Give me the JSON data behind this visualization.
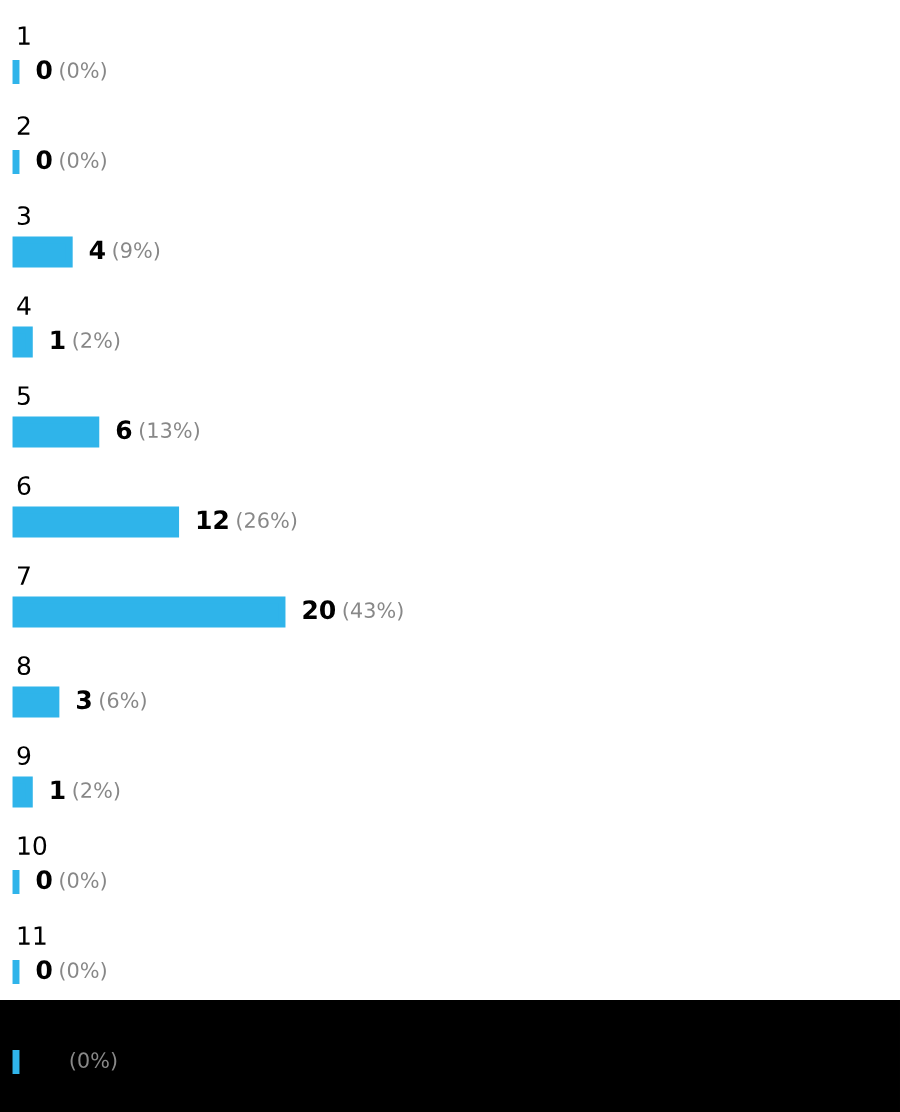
{
  "chart_data": {
    "type": "bar",
    "orientation": "horizontal",
    "categories": [
      "1",
      "2",
      "3",
      "4",
      "5",
      "6",
      "7",
      "8",
      "9",
      "10",
      "11",
      null
    ],
    "values": [
      0,
      0,
      4,
      1,
      6,
      12,
      20,
      3,
      1,
      0,
      0,
      0
    ],
    "color": "#2fb4ea",
    "value_labels": [
      "0 (0%)",
      "0 (0%)",
      "4 (9%)",
      "1 (2%)",
      "6 (13%)",
      "12 (26%)",
      "20 (43%)",
      "3 (6%)",
      "1 (2%)",
      "0 (0%)",
      "0 (0%)",
      "(0%)"
    ],
    "data_labels": false
  }
}
